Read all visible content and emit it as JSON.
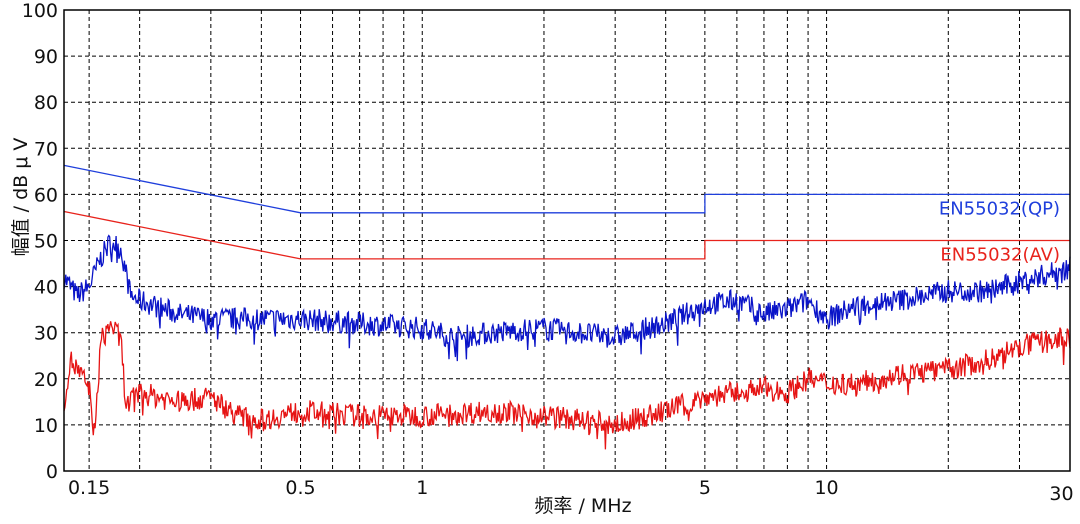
{
  "chart_data": {
    "type": "line",
    "title": "",
    "xlabel": "频率 / MHz",
    "ylabel": "幅值 / dB μ V",
    "x_scale": "log",
    "xlim": [
      0.13,
      40
    ],
    "ylim": [
      0,
      100
    ],
    "grid": true,
    "yticks": [
      0,
      10,
      20,
      30,
      40,
      50,
      60,
      70,
      80,
      90,
      100
    ],
    "xticks": [
      0.15,
      0.5,
      1,
      5,
      10,
      30
    ],
    "xgrid": [
      0.15,
      0.2,
      0.3,
      0.4,
      0.5,
      0.6,
      0.7,
      0.8,
      0.9,
      1,
      2,
      3,
      4,
      5,
      6,
      7,
      8,
      9,
      10,
      20,
      30
    ],
    "limit_lines": [
      {
        "name": "EN55032(QP)",
        "color": "#1f3fdc",
        "points": [
          [
            0.13,
            66.3
          ],
          [
            0.5,
            56
          ],
          [
            5,
            56
          ],
          [
            5,
            60
          ],
          [
            40,
            60
          ]
        ]
      },
      {
        "name": "EN55032(AV)",
        "color": "#e8231c",
        "points": [
          [
            0.13,
            56.3
          ],
          [
            0.5,
            46
          ],
          [
            5,
            46
          ],
          [
            5,
            50
          ],
          [
            40,
            50
          ]
        ]
      }
    ],
    "series": [
      {
        "color": "#0a14c8",
        "points": [
          [
            0.13,
            42
          ],
          [
            0.14,
            38
          ],
          [
            0.15,
            40
          ],
          [
            0.16,
            46
          ],
          [
            0.17,
            50
          ],
          [
            0.18,
            48
          ],
          [
            0.19,
            38
          ],
          [
            0.2,
            37
          ],
          [
            0.25,
            34
          ],
          [
            0.3,
            33
          ],
          [
            0.4,
            33
          ],
          [
            0.5,
            33
          ],
          [
            0.7,
            32
          ],
          [
            1,
            31
          ],
          [
            1.2,
            29
          ],
          [
            1.5,
            30
          ],
          [
            2,
            31
          ],
          [
            3,
            29
          ],
          [
            4,
            32
          ],
          [
            5,
            36
          ],
          [
            6,
            37
          ],
          [
            7,
            34
          ],
          [
            8,
            35
          ],
          [
            9,
            37
          ],
          [
            10,
            33
          ],
          [
            12,
            36
          ],
          [
            15,
            37
          ],
          [
            20,
            39
          ],
          [
            25,
            39
          ],
          [
            30,
            41
          ],
          [
            40,
            44
          ]
        ]
      },
      {
        "color": "#e61414",
        "points": [
          [
            0.13,
            15
          ],
          [
            0.135,
            24
          ],
          [
            0.14,
            22
          ],
          [
            0.15,
            18
          ],
          [
            0.155,
            7
          ],
          [
            0.16,
            28
          ],
          [
            0.17,
            32
          ],
          [
            0.18,
            28
          ],
          [
            0.185,
            14
          ],
          [
            0.2,
            17
          ],
          [
            0.25,
            15
          ],
          [
            0.3,
            16
          ],
          [
            0.35,
            12
          ],
          [
            0.4,
            11
          ],
          [
            0.5,
            13
          ],
          [
            0.7,
            12
          ],
          [
            1,
            12
          ],
          [
            1.5,
            13
          ],
          [
            2,
            12
          ],
          [
            3,
            10
          ],
          [
            4,
            13
          ],
          [
            5,
            16
          ],
          [
            6,
            17
          ],
          [
            7,
            18
          ],
          [
            8,
            17
          ],
          [
            9,
            20
          ],
          [
            10,
            19
          ],
          [
            12,
            19
          ],
          [
            15,
            21
          ],
          [
            20,
            22
          ],
          [
            25,
            24
          ],
          [
            30,
            27
          ],
          [
            40,
            29
          ]
        ]
      }
    ]
  }
}
